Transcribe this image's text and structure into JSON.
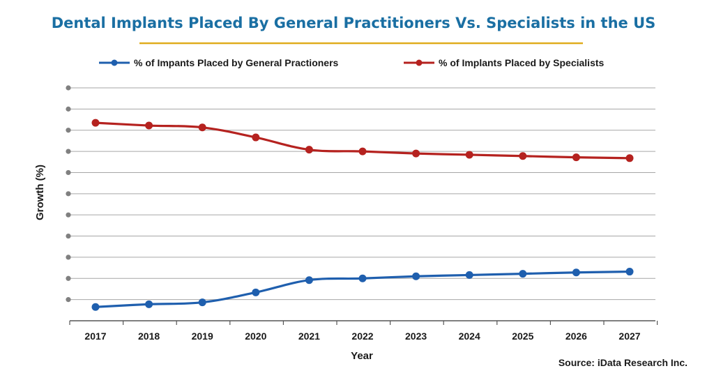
{
  "colors": {
    "title": "#1a6fa3",
    "title_underline": "#e0ad1e",
    "general": "#1f5fae",
    "specialists": "#b5221f",
    "grid": "#a6a6a6",
    "axis": "#555555",
    "text": "#1a1a1a",
    "dot": "#808080"
  },
  "chart_data": {
    "type": "line",
    "title": "Dental Implants Placed By General Practitioners Vs. Specialists in the US",
    "xlabel": "Year",
    "ylabel": "Growth (%)",
    "ylim": [
      0,
      110
    ],
    "y_tick_labels_shown": false,
    "grid": true,
    "legend_position": "top",
    "categories": [
      "2017",
      "2018",
      "2019",
      "2020",
      "2021",
      "2022",
      "2023",
      "2024",
      "2025",
      "2026",
      "2027"
    ],
    "series": [
      {
        "name": "% of Impants Placed by General Practioners",
        "color": "#1f5fae",
        "values": [
          6.5,
          7.8,
          8.7,
          13.4,
          19.2,
          20.0,
          21.0,
          21.6,
          22.2,
          22.8,
          23.2
        ]
      },
      {
        "name": "% of Implants Placed by Specialists",
        "color": "#b5221f",
        "values": [
          93.5,
          92.2,
          91.3,
          86.6,
          80.8,
          80.0,
          79.0,
          78.4,
          77.8,
          77.2,
          76.8
        ]
      }
    ],
    "source": "Source: iData Research Inc."
  }
}
